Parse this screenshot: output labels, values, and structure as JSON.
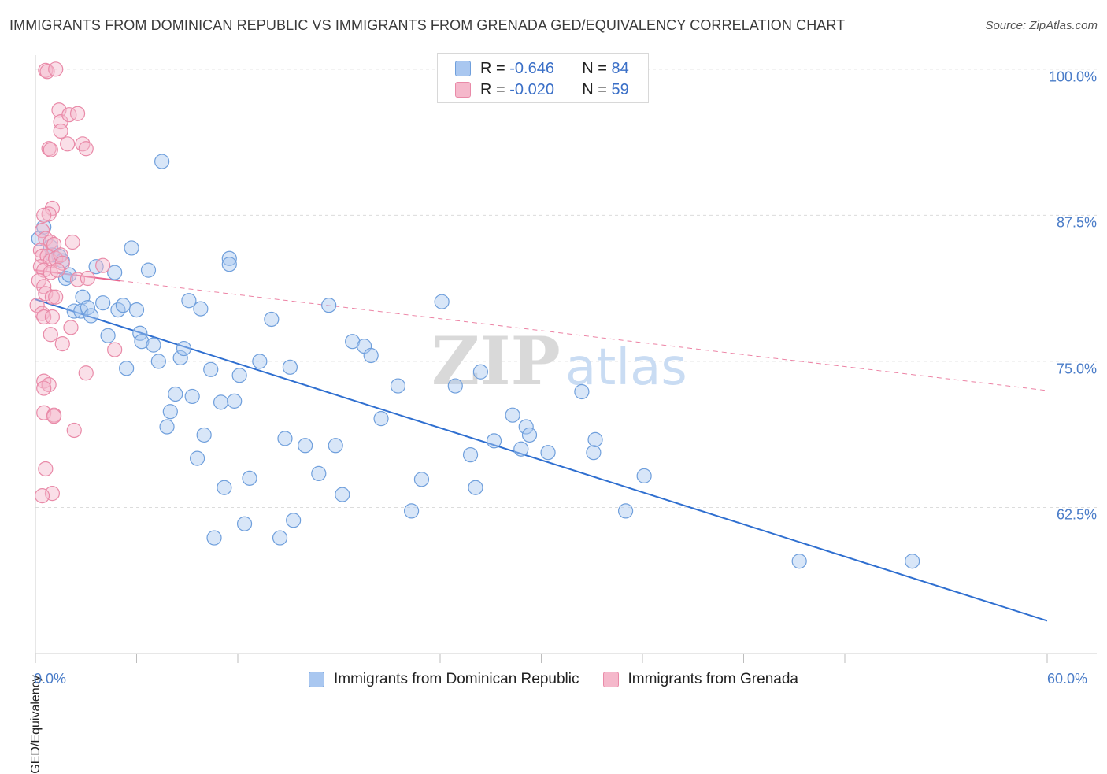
{
  "title": "IMMIGRANTS FROM DOMINICAN REPUBLIC VS IMMIGRANTS FROM GRENADA GED/EQUIVALENCY CORRELATION CHART",
  "source": "Source: ZipAtlas.com",
  "watermark": {
    "zip": "ZIP",
    "atlas": "atlas"
  },
  "colors": {
    "blue_fill": "#a9c7f0",
    "blue_stroke": "#6f9fdc",
    "blue_line": "#2f6fd0",
    "pink_fill": "#f5b8cb",
    "pink_stroke": "#e98aa8",
    "pink_line": "#e8648e",
    "tick_label": "#4a7cc8",
    "grid": "#dcdcdc"
  },
  "legend": {
    "rows": [
      {
        "r_label": "R = ",
        "r_value": "-0.646",
        "n_label": "N = ",
        "n_value": "84"
      },
      {
        "r_label": "R = ",
        "r_value": "-0.020",
        "n_label": "N = ",
        "n_value": "59"
      }
    ]
  },
  "chart_data": {
    "type": "scatter",
    "title": "IMMIGRANTS FROM DOMINICAN REPUBLIC VS IMMIGRANTS FROM GRENADA GED/EQUIVALENCY CORRELATION CHART",
    "xlabel": "",
    "ylabel": "GED/Equivalency",
    "xlim": [
      0,
      60
    ],
    "ylim": [
      50,
      101.2
    ],
    "x_tick_labels": [
      "0.0%",
      "60.0%"
    ],
    "y_ticks": [
      62.5,
      75.0,
      87.5,
      100.0
    ],
    "y_tick_labels": [
      "62.5%",
      "75.0%",
      "87.5%",
      "100.0%"
    ],
    "grid": true,
    "legend_position": "bottom",
    "series": [
      {
        "name": "Immigrants from Dominican Republic",
        "color": "blue",
        "r": -0.646,
        "n": 84,
        "trend": {
          "x": [
            0,
            60
          ],
          "y": [
            80.3,
            52.8
          ],
          "dashed_extension": false
        },
        "points": [
          [
            0.2,
            85.5
          ],
          [
            0.5,
            86.5
          ],
          [
            0.9,
            84.8
          ],
          [
            1.0,
            84.1
          ],
          [
            1.4,
            84.0
          ],
          [
            1.6,
            83.6
          ],
          [
            1.8,
            82.1
          ],
          [
            2.0,
            82.4
          ],
          [
            2.3,
            79.3
          ],
          [
            2.7,
            79.3
          ],
          [
            2.8,
            80.5
          ],
          [
            3.1,
            79.6
          ],
          [
            3.3,
            78.9
          ],
          [
            3.6,
            83.1
          ],
          [
            4.0,
            80.0
          ],
          [
            4.3,
            77.2
          ],
          [
            4.7,
            82.6
          ],
          [
            4.9,
            79.4
          ],
          [
            5.2,
            79.8
          ],
          [
            5.4,
            74.4
          ],
          [
            5.7,
            84.7
          ],
          [
            6.0,
            79.4
          ],
          [
            6.2,
            77.4
          ],
          [
            6.3,
            76.7
          ],
          [
            6.7,
            82.8
          ],
          [
            7.0,
            76.4
          ],
          [
            7.3,
            75.0
          ],
          [
            7.5,
            92.1
          ],
          [
            7.8,
            69.4
          ],
          [
            8.0,
            70.7
          ],
          [
            8.3,
            72.2
          ],
          [
            8.6,
            75.3
          ],
          [
            8.8,
            76.1
          ],
          [
            9.1,
            80.2
          ],
          [
            9.3,
            72.0
          ],
          [
            9.6,
            66.7
          ],
          [
            9.8,
            79.5
          ],
          [
            10.0,
            68.7
          ],
          [
            10.4,
            74.3
          ],
          [
            10.6,
            59.9
          ],
          [
            11.0,
            71.5
          ],
          [
            11.2,
            64.2
          ],
          [
            11.5,
            83.8
          ],
          [
            11.5,
            83.3
          ],
          [
            11.8,
            71.6
          ],
          [
            12.1,
            73.8
          ],
          [
            12.4,
            61.1
          ],
          [
            12.7,
            65.0
          ],
          [
            13.3,
            75.0
          ],
          [
            14.0,
            78.6
          ],
          [
            14.5,
            59.9
          ],
          [
            14.8,
            68.4
          ],
          [
            15.1,
            74.5
          ],
          [
            15.3,
            61.4
          ],
          [
            16.0,
            67.8
          ],
          [
            16.8,
            65.4
          ],
          [
            17.4,
            79.8
          ],
          [
            17.8,
            67.8
          ],
          [
            18.2,
            63.6
          ],
          [
            18.8,
            76.7
          ],
          [
            19.5,
            76.3
          ],
          [
            19.9,
            75.5
          ],
          [
            20.5,
            70.1
          ],
          [
            21.5,
            72.9
          ],
          [
            22.3,
            62.2
          ],
          [
            22.9,
            64.9
          ],
          [
            24.1,
            80.1
          ],
          [
            24.9,
            72.9
          ],
          [
            25.8,
            67.0
          ],
          [
            26.1,
            64.2
          ],
          [
            26.4,
            74.1
          ],
          [
            27.2,
            68.2
          ],
          [
            28.3,
            70.4
          ],
          [
            28.8,
            67.5
          ],
          [
            29.1,
            69.4
          ],
          [
            29.3,
            68.7
          ],
          [
            30.4,
            67.2
          ],
          [
            32.4,
            72.4
          ],
          [
            33.1,
            67.2
          ],
          [
            33.2,
            68.3
          ],
          [
            35.0,
            62.2
          ],
          [
            36.1,
            65.2
          ],
          [
            45.3,
            57.9
          ],
          [
            52.0,
            57.9
          ]
        ]
      },
      {
        "name": "Immigrants from Grenada",
        "color": "pink",
        "r": -0.02,
        "n": 59,
        "trend": {
          "x": [
            0,
            5
          ],
          "y": [
            82.8,
            81.9
          ],
          "dashed_extension": true,
          "extension_end": [
            60,
            72.5
          ]
        },
        "points": [
          [
            0.6,
            99.9
          ],
          [
            0.7,
            99.8
          ],
          [
            1.2,
            100.0
          ],
          [
            1.4,
            96.5
          ],
          [
            1.5,
            95.5
          ],
          [
            1.5,
            94.7
          ],
          [
            1.9,
            93.6
          ],
          [
            2.0,
            96.1
          ],
          [
            2.5,
            96.2
          ],
          [
            2.8,
            93.6
          ],
          [
            3.0,
            93.2
          ],
          [
            0.8,
            93.2
          ],
          [
            0.9,
            93.1
          ],
          [
            1.0,
            88.1
          ],
          [
            0.8,
            87.6
          ],
          [
            0.5,
            87.5
          ],
          [
            0.4,
            86.2
          ],
          [
            0.6,
            85.5
          ],
          [
            0.9,
            85.2
          ],
          [
            1.1,
            85.0
          ],
          [
            2.2,
            85.2
          ],
          [
            0.3,
            84.5
          ],
          [
            0.4,
            84.0
          ],
          [
            0.7,
            84.0
          ],
          [
            0.9,
            83.6
          ],
          [
            1.2,
            83.8
          ],
          [
            1.5,
            84.1
          ],
          [
            1.6,
            83.4
          ],
          [
            0.3,
            83.1
          ],
          [
            0.5,
            82.8
          ],
          [
            0.9,
            82.6
          ],
          [
            1.3,
            82.8
          ],
          [
            4.0,
            83.2
          ],
          [
            2.5,
            82.0
          ],
          [
            3.1,
            82.1
          ],
          [
            0.2,
            81.9
          ],
          [
            0.5,
            81.4
          ],
          [
            0.6,
            80.8
          ],
          [
            1.0,
            80.5
          ],
          [
            1.2,
            80.5
          ],
          [
            0.1,
            79.8
          ],
          [
            0.4,
            79.1
          ],
          [
            0.5,
            78.8
          ],
          [
            1.0,
            78.8
          ],
          [
            2.1,
            77.9
          ],
          [
            0.9,
            77.3
          ],
          [
            1.6,
            76.5
          ],
          [
            4.7,
            76.0
          ],
          [
            3.0,
            74.0
          ],
          [
            0.5,
            73.3
          ],
          [
            0.8,
            73.0
          ],
          [
            0.5,
            72.7
          ],
          [
            0.5,
            70.6
          ],
          [
            1.1,
            70.4
          ],
          [
            1.1,
            70.3
          ],
          [
            2.3,
            69.1
          ],
          [
            0.6,
            65.8
          ],
          [
            1.0,
            63.7
          ],
          [
            0.4,
            63.5
          ]
        ]
      }
    ]
  },
  "bottom_legend": [
    {
      "label": "Immigrants from Dominican Republic"
    },
    {
      "label": "Immigrants from Grenada"
    }
  ]
}
